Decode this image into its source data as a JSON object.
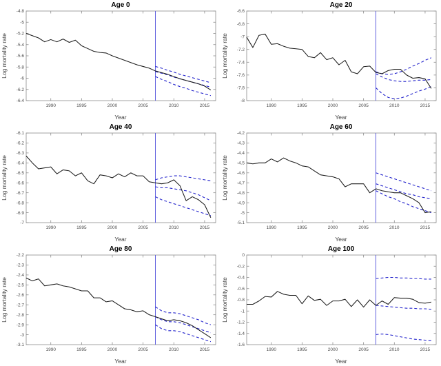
{
  "colors": {
    "observed": "#1a1a1a",
    "forecast": "#2424cc",
    "vline": "#5c5cdd",
    "axis": "#8c8c8c",
    "tick_text": "#4d4d4d"
  },
  "chart_shared": {
    "years_observed": [
      1986,
      1987,
      1988,
      1989,
      1990,
      1991,
      1992,
      1993,
      1994,
      1995,
      1996,
      1997,
      1998,
      1999,
      2000,
      2001,
      2002,
      2003,
      2004,
      2005,
      2006,
      2007,
      2008,
      2009,
      2010,
      2011,
      2012,
      2013,
      2014,
      2015,
      2016
    ],
    "years_forecast": [
      2007,
      2008,
      2009,
      2010,
      2011,
      2012,
      2013,
      2014,
      2015,
      2016
    ],
    "forecast_start_line": 2007
  },
  "chart_data": [
    {
      "type": "line",
      "title": "Age 0",
      "xlabel": "Year",
      "ylabel": "Log mortality rate",
      "xlim": [
        1986,
        2016.8
      ],
      "ylim": [
        -6.4,
        -4.8
      ],
      "xticks": [
        1990,
        1995,
        2000,
        2005,
        2010,
        2015
      ],
      "yticks": [
        -6.4,
        -6.2,
        -6,
        -5.8,
        -5.6,
        -5.4,
        -5.2,
        -5,
        -4.8
      ],
      "vline_x": 2007,
      "grid": false,
      "legend": "none",
      "series": [
        {
          "name": "forecast-upper",
          "x": "forecast",
          "style": "dashed",
          "color_key": "forecast",
          "values": [
            -5.79,
            -5.82,
            -5.86,
            -5.89,
            -5.93,
            -5.96,
            -5.99,
            -6.02,
            -6.05,
            -6.08
          ]
        },
        {
          "name": "forecast-central",
          "x": "forecast",
          "style": "dashed",
          "color_key": "forecast",
          "values": [
            -5.88,
            -5.91,
            -5.94,
            -5.98,
            -6.01,
            -6.04,
            -6.07,
            -6.1,
            -6.13,
            -6.16
          ]
        },
        {
          "name": "forecast-lower",
          "x": "forecast",
          "style": "dashed",
          "color_key": "forecast",
          "values": [
            -5.97,
            -6.02,
            -6.06,
            -6.11,
            -6.15,
            -6.18,
            -6.22,
            -6.25,
            -6.28,
            -6.31
          ]
        },
        {
          "name": "observed",
          "x": "observed",
          "style": "solid",
          "color_key": "observed",
          "values": [
            -5.2,
            -5.24,
            -5.28,
            -5.35,
            -5.31,
            -5.35,
            -5.3,
            -5.36,
            -5.32,
            -5.42,
            -5.47,
            -5.52,
            -5.54,
            -5.55,
            -5.6,
            -5.64,
            -5.68,
            -5.72,
            -5.76,
            -5.79,
            -5.82,
            -5.87,
            -5.9,
            -5.93,
            -5.97,
            -6.01,
            -6.04,
            -6.07,
            -6.1,
            -6.14,
            -6.21
          ]
        }
      ]
    },
    {
      "type": "line",
      "title": "Age 20",
      "xlabel": "Year",
      "ylabel": "Log mortality rate",
      "xlim": [
        1986,
        2016.8
      ],
      "ylim": [
        -8,
        -6.6
      ],
      "xticks": [
        1990,
        1995,
        2000,
        2005,
        2010,
        2015
      ],
      "yticks": [
        -8,
        -7.8,
        -7.6,
        -7.4,
        -7.2,
        -7,
        -6.8,
        -6.6
      ],
      "vline_x": 2007,
      "grid": false,
      "legend": "none",
      "series": [
        {
          "name": "forecast-upper",
          "x": "forecast",
          "style": "dashed",
          "color_key": "forecast",
          "values": [
            -7.55,
            -7.58,
            -7.59,
            -7.58,
            -7.55,
            -7.51,
            -7.46,
            -7.42,
            -7.37,
            -7.33
          ]
        },
        {
          "name": "forecast-central",
          "x": "forecast",
          "style": "dashed",
          "color_key": "forecast",
          "values": [
            -7.58,
            -7.63,
            -7.67,
            -7.69,
            -7.7,
            -7.7,
            -7.69,
            -7.68,
            -7.68,
            -7.67
          ]
        },
        {
          "name": "forecast-lower",
          "x": "forecast",
          "style": "dashed",
          "color_key": "forecast",
          "values": [
            -7.8,
            -7.89,
            -7.95,
            -7.97,
            -7.96,
            -7.93,
            -7.89,
            -7.85,
            -7.82,
            -7.78
          ]
        },
        {
          "name": "observed",
          "x": "observed",
          "style": "solid",
          "color_key": "observed",
          "values": [
            -7.01,
            -7.17,
            -6.98,
            -6.96,
            -7.12,
            -7.11,
            -7.15,
            -7.18,
            -7.19,
            -7.2,
            -7.31,
            -7.33,
            -7.25,
            -7.36,
            -7.33,
            -7.44,
            -7.37,
            -7.55,
            -7.58,
            -7.47,
            -7.46,
            -7.56,
            -7.58,
            -7.53,
            -7.51,
            -7.51,
            -7.6,
            -7.65,
            -7.64,
            -7.66,
            -7.81
          ]
        }
      ]
    },
    {
      "type": "line",
      "title": "Age 40",
      "xlabel": "Year",
      "ylabel": "Log mortality rate",
      "xlim": [
        1986,
        2016.8
      ],
      "ylim": [
        -7,
        -6.1
      ],
      "xticks": [
        1990,
        1995,
        2000,
        2005,
        2010,
        2015
      ],
      "yticks": [
        -7,
        -6.9,
        -6.8,
        -6.7,
        -6.6,
        -6.5,
        -6.4,
        -6.3,
        -6.2,
        -6.1
      ],
      "vline_x": 2007,
      "grid": false,
      "legend": "none",
      "series": [
        {
          "name": "forecast-upper",
          "x": "forecast",
          "style": "dashed",
          "color_key": "forecast",
          "values": [
            -6.57,
            -6.55,
            -6.54,
            -6.53,
            -6.53,
            -6.54,
            -6.55,
            -6.56,
            -6.57,
            -6.58
          ]
        },
        {
          "name": "forecast-central",
          "x": "forecast",
          "style": "dashed",
          "color_key": "forecast",
          "values": [
            -6.64,
            -6.65,
            -6.65,
            -6.66,
            -6.67,
            -6.68,
            -6.7,
            -6.72,
            -6.75,
            -6.78
          ]
        },
        {
          "name": "forecast-lower",
          "x": "forecast",
          "style": "dashed",
          "color_key": "forecast",
          "values": [
            -6.74,
            -6.77,
            -6.79,
            -6.81,
            -6.83,
            -6.85,
            -6.87,
            -6.89,
            -6.91,
            -6.93
          ]
        },
        {
          "name": "observed",
          "x": "observed",
          "style": "solid",
          "color_key": "observed",
          "values": [
            -6.33,
            -6.4,
            -6.46,
            -6.45,
            -6.44,
            -6.51,
            -6.47,
            -6.48,
            -6.53,
            -6.5,
            -6.58,
            -6.61,
            -6.52,
            -6.53,
            -6.55,
            -6.51,
            -6.54,
            -6.5,
            -6.53,
            -6.53,
            -6.59,
            -6.6,
            -6.61,
            -6.6,
            -6.57,
            -6.63,
            -6.78,
            -6.74,
            -6.77,
            -6.82,
            -6.95
          ]
        }
      ]
    },
    {
      "type": "line",
      "title": "Age 60",
      "xlabel": "Year",
      "ylabel": "Log mortality rate",
      "xlim": [
        1986,
        2016.8
      ],
      "ylim": [
        -5.1,
        -4.2
      ],
      "xticks": [
        1990,
        1995,
        2000,
        2005,
        2010,
        2015
      ],
      "yticks": [
        -5.1,
        -5,
        -4.9,
        -4.8,
        -4.7,
        -4.6,
        -4.5,
        -4.4,
        -4.3,
        -4.2
      ],
      "vline_x": 2007,
      "grid": false,
      "legend": "none",
      "series": [
        {
          "name": "forecast-upper",
          "x": "forecast",
          "style": "dashed",
          "color_key": "forecast",
          "values": [
            -4.6,
            -4.62,
            -4.64,
            -4.66,
            -4.68,
            -4.7,
            -4.72,
            -4.74,
            -4.76,
            -4.78
          ]
        },
        {
          "name": "forecast-central",
          "x": "forecast",
          "style": "dashed",
          "color_key": "forecast",
          "values": [
            -4.71,
            -4.73,
            -4.75,
            -4.77,
            -4.79,
            -4.81,
            -4.82,
            -4.84,
            -4.85,
            -4.86
          ]
        },
        {
          "name": "forecast-lower",
          "x": "forecast",
          "style": "dashed",
          "color_key": "forecast",
          "values": [
            -4.78,
            -4.81,
            -4.84,
            -4.86,
            -4.89,
            -4.91,
            -4.94,
            -4.96,
            -4.98,
            -5.0
          ]
        },
        {
          "name": "observed",
          "x": "observed",
          "style": "solid",
          "color_key": "observed",
          "values": [
            -4.5,
            -4.51,
            -4.5,
            -4.5,
            -4.46,
            -4.49,
            -4.45,
            -4.48,
            -4.5,
            -4.53,
            -4.54,
            -4.58,
            -4.62,
            -4.63,
            -4.64,
            -4.66,
            -4.74,
            -4.71,
            -4.71,
            -4.71,
            -4.8,
            -4.76,
            -4.78,
            -4.79,
            -4.8,
            -4.8,
            -4.83,
            -4.86,
            -4.9,
            -5.0,
            -4.99
          ]
        }
      ]
    },
    {
      "type": "line",
      "title": "Age 80",
      "xlabel": "Year",
      "ylabel": "Log mortality rate",
      "xlim": [
        1986,
        2016.8
      ],
      "ylim": [
        -3.1,
        -2.2
      ],
      "xticks": [
        1990,
        1995,
        2000,
        2005,
        2010,
        2015
      ],
      "yticks": [
        -3.1,
        -3,
        -2.9,
        -2.8,
        -2.7,
        -2.6,
        -2.5,
        -2.4,
        -2.3,
        -2.2
      ],
      "vline_x": 2007,
      "grid": false,
      "legend": "none",
      "series": [
        {
          "name": "forecast-upper",
          "x": "forecast",
          "style": "dashed",
          "color_key": "forecast",
          "values": [
            -2.72,
            -2.76,
            -2.78,
            -2.78,
            -2.79,
            -2.81,
            -2.83,
            -2.85,
            -2.88,
            -2.9
          ]
        },
        {
          "name": "forecast-central",
          "x": "forecast",
          "style": "dashed",
          "color_key": "forecast",
          "values": [
            -2.82,
            -2.85,
            -2.87,
            -2.87,
            -2.88,
            -2.9,
            -2.92,
            -2.94,
            -2.96,
            -2.98
          ]
        },
        {
          "name": "forecast-lower",
          "x": "forecast",
          "style": "dashed",
          "color_key": "forecast",
          "values": [
            -2.9,
            -2.94,
            -2.96,
            -2.96,
            -2.97,
            -2.99,
            -3.01,
            -3.03,
            -3.05,
            -3.07
          ]
        },
        {
          "name": "observed",
          "x": "observed",
          "style": "solid",
          "color_key": "observed",
          "values": [
            -2.43,
            -2.46,
            -2.44,
            -2.51,
            -2.5,
            -2.49,
            -2.51,
            -2.52,
            -2.54,
            -2.56,
            -2.56,
            -2.63,
            -2.63,
            -2.67,
            -2.66,
            -2.7,
            -2.74,
            -2.75,
            -2.77,
            -2.76,
            -2.8,
            -2.82,
            -2.84,
            -2.86,
            -2.85,
            -2.86,
            -2.88,
            -2.91,
            -2.95,
            -2.99,
            -3.03
          ]
        }
      ]
    },
    {
      "type": "line",
      "title": "Age 100",
      "xlabel": "Year",
      "ylabel": "Log mortality rate",
      "xlim": [
        1986,
        2016.8
      ],
      "ylim": [
        -1.6,
        0
      ],
      "xticks": [
        1990,
        1995,
        2000,
        2005,
        2010,
        2015
      ],
      "yticks": [
        -1.6,
        -1.4,
        -1.2,
        -1,
        -0.8,
        -0.6,
        -0.4,
        -0.2,
        0
      ],
      "vline_x": 2007,
      "grid": false,
      "legend": "none",
      "series": [
        {
          "name": "forecast-upper",
          "x": "forecast",
          "style": "dashed",
          "color_key": "forecast",
          "values": [
            -0.42,
            -0.41,
            -0.4,
            -0.4,
            -0.41,
            -0.41,
            -0.42,
            -0.42,
            -0.43,
            -0.43
          ]
        },
        {
          "name": "forecast-central",
          "x": "forecast",
          "style": "dashed",
          "color_key": "forecast",
          "values": [
            -0.9,
            -0.91,
            -0.92,
            -0.93,
            -0.94,
            -0.95,
            -0.95,
            -0.96,
            -0.96,
            -0.97
          ]
        },
        {
          "name": "forecast-lower",
          "x": "forecast",
          "style": "dashed",
          "color_key": "forecast",
          "values": [
            -1.42,
            -1.41,
            -1.42,
            -1.44,
            -1.46,
            -1.48,
            -1.5,
            -1.51,
            -1.52,
            -1.53
          ]
        },
        {
          "name": "observed",
          "x": "observed",
          "style": "solid",
          "color_key": "observed",
          "values": [
            -0.88,
            -0.88,
            -0.82,
            -0.74,
            -0.75,
            -0.65,
            -0.7,
            -0.72,
            -0.72,
            -0.87,
            -0.73,
            -0.81,
            -0.79,
            -0.9,
            -0.82,
            -0.82,
            -0.79,
            -0.92,
            -0.8,
            -0.93,
            -0.8,
            -0.9,
            -0.82,
            -0.88,
            -0.76,
            -0.77,
            -0.77,
            -0.79,
            -0.85,
            -0.86,
            -0.84
          ]
        }
      ]
    }
  ]
}
